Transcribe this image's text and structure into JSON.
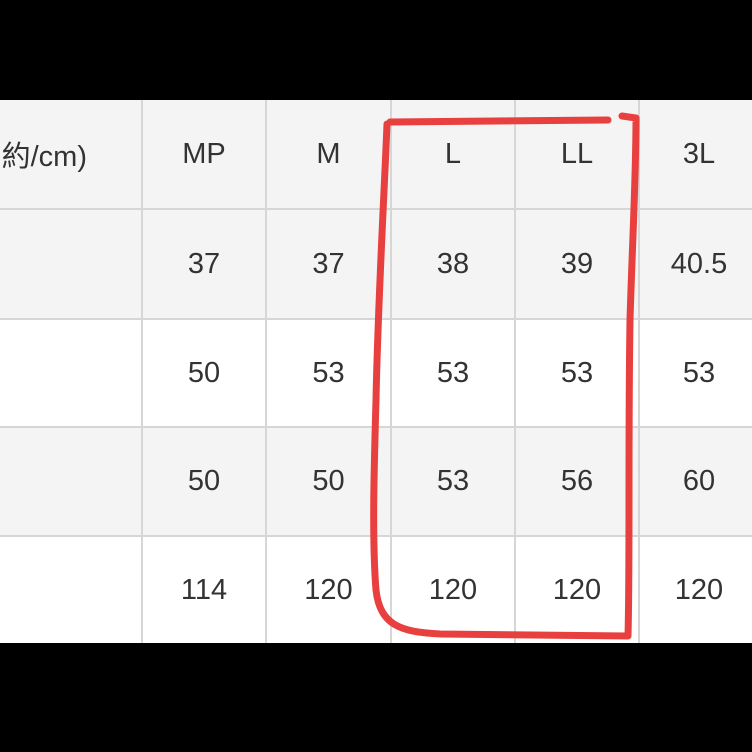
{
  "table": {
    "header": [
      "約/cm)",
      "MP",
      "M",
      "L",
      "LL",
      "3L"
    ],
    "rows": [
      [
        37,
        37,
        38,
        39,
        40.5
      ],
      [
        50,
        53,
        53,
        53,
        53
      ],
      [
        50,
        50,
        53,
        56,
        60
      ],
      [
        114,
        120,
        120,
        120,
        120
      ]
    ]
  }
}
